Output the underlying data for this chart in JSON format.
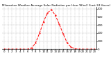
{
  "title": "Milwaukee Weather Average Solar Radiation per Hour W/m2 (Last 24 Hours)",
  "hours": [
    0,
    1,
    2,
    3,
    4,
    5,
    6,
    7,
    8,
    9,
    10,
    11,
    12,
    13,
    14,
    15,
    16,
    17,
    18,
    19,
    20,
    21,
    22,
    23
  ],
  "values": [
    0,
    0,
    0,
    0,
    0,
    0,
    0,
    15,
    80,
    200,
    340,
    450,
    490,
    420,
    310,
    190,
    80,
    25,
    5,
    0,
    0,
    0,
    0,
    0
  ],
  "line_color": "#ff0000",
  "bg_color": "#ffffff",
  "grid_color": "#888888",
  "ylim": [
    0,
    520
  ],
  "yticks": [
    0,
    100,
    200,
    300,
    400,
    500
  ],
  "title_fontsize": 3.0,
  "tick_fontsize": 2.8
}
